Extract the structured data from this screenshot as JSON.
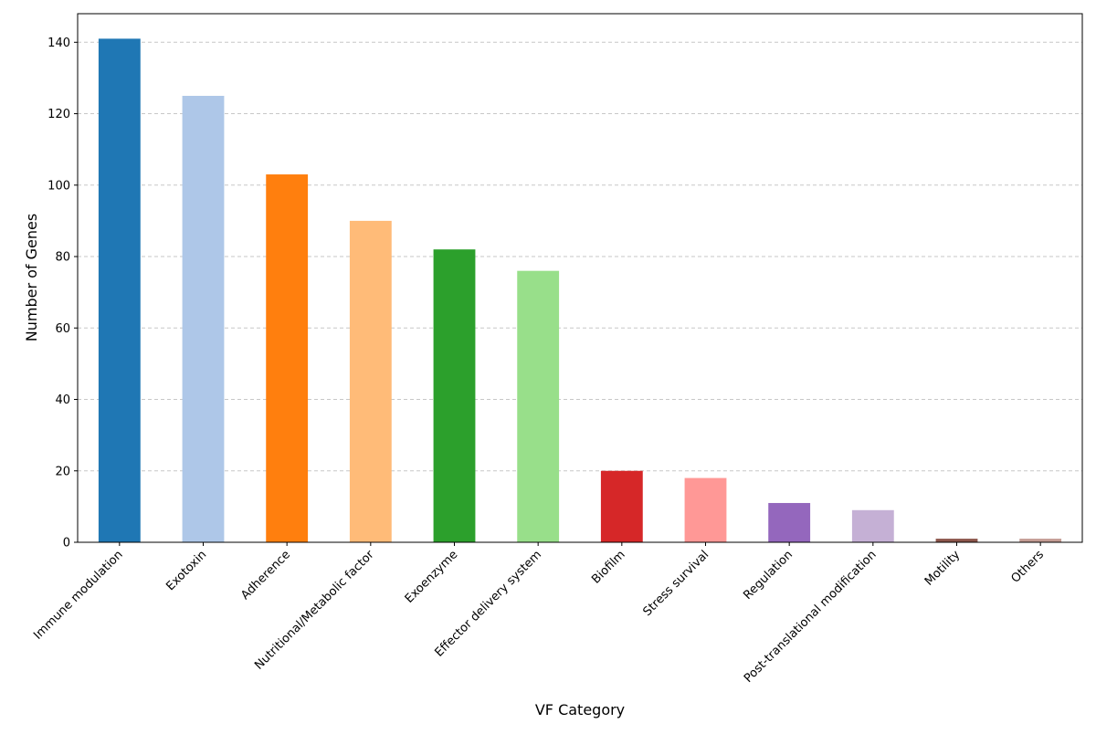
{
  "chart_data": {
    "type": "bar",
    "title": "",
    "xlabel": "VF Category",
    "ylabel": "Number of Genes",
    "ylim": [
      0,
      148
    ],
    "yticks": [
      0,
      20,
      40,
      60,
      80,
      100,
      120,
      140
    ],
    "grid": "y-dashed",
    "legend": "none",
    "categories": [
      "Immune modulation",
      "Exotoxin",
      "Adherence",
      "Nutritional/Metabolic factor",
      "Exoenzyme",
      "Effector delivery system",
      "Biofilm",
      "Stress survival",
      "Regulation",
      "Post-translational modification",
      "Motility",
      "Others"
    ],
    "values": [
      141,
      125,
      103,
      90,
      82,
      76,
      20,
      18,
      11,
      9,
      1,
      1
    ],
    "colors": [
      "#1f77b4",
      "#aec7e8",
      "#ff7f0e",
      "#ffbb78",
      "#2ca02c",
      "#98df8a",
      "#d62728",
      "#ff9896",
      "#9467bd",
      "#c5b0d5",
      "#8c564b",
      "#c49c94"
    ]
  }
}
